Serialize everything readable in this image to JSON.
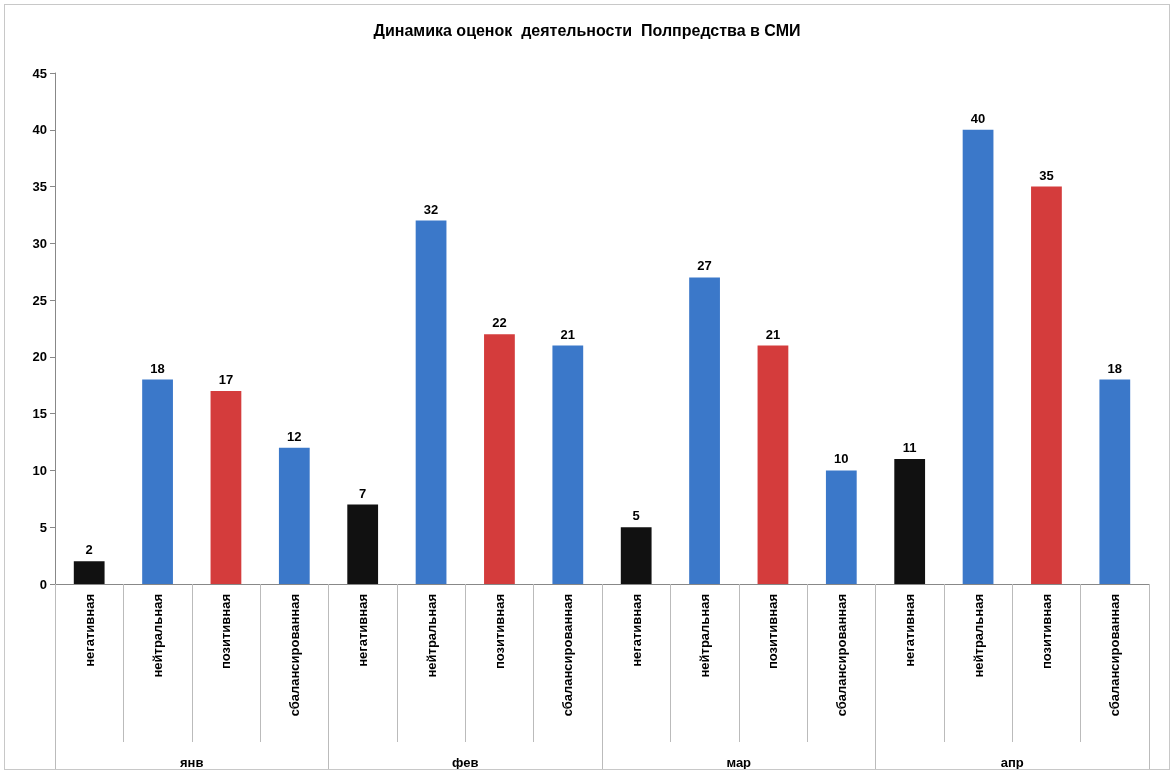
{
  "chart_data": {
    "type": "bar",
    "title": "Динамика оценок  деятельности  Полпредства в СМИ",
    "categories": [
      "негативная",
      "нейтральная",
      "позитивная",
      "сбалансированная",
      "негативная",
      "нейтральная",
      "позитивная",
      "сбалансированная",
      "негативная",
      "нейтральная",
      "позитивная",
      "сбалансированная",
      "негативная",
      "нейтральная",
      "позитивная",
      "сбалансированная"
    ],
    "values": [
      2,
      18,
      17,
      12,
      7,
      32,
      22,
      21,
      5,
      27,
      21,
      10,
      11,
      40,
      35,
      18
    ],
    "colors": [
      "#111111",
      "#3b78c9",
      "#d43c3c",
      "#3b78c9",
      "#111111",
      "#3b78c9",
      "#d43c3c",
      "#3b78c9",
      "#111111",
      "#3b78c9",
      "#d43c3c",
      "#3b78c9",
      "#111111",
      "#3b78c9",
      "#d43c3c",
      "#3b78c9"
    ],
    "annotations": [
      "янв",
      "фев",
      "мар",
      "апр"
    ],
    "ylim": [
      0,
      45
    ],
    "yticks": [
      0,
      5,
      10,
      15,
      20,
      25,
      30,
      35,
      40,
      45
    ],
    "data_labels": true,
    "grid": false
  }
}
